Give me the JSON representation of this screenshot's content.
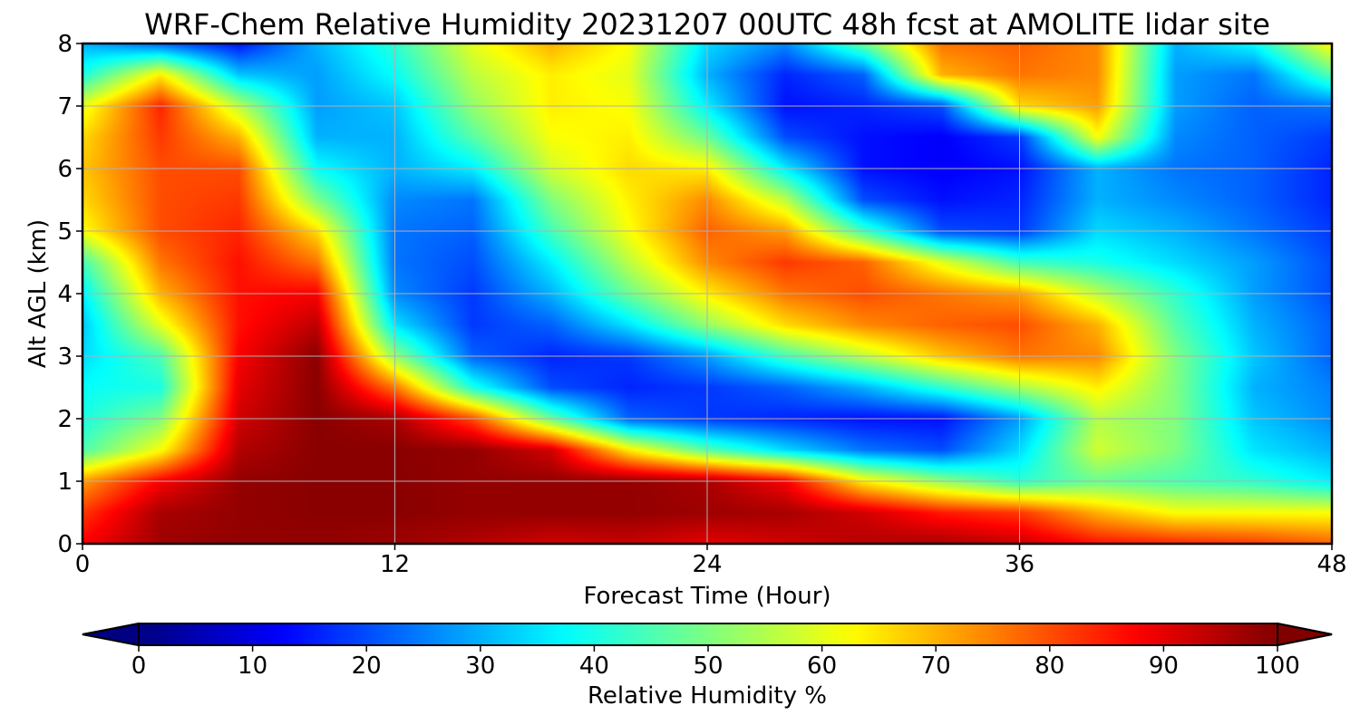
{
  "chart_data": {
    "type": "heatmap",
    "title": "WRF-Chem Relative Humidity 20231207 00UTC 48h fcst at AMOLITE lidar site",
    "xlabel": "Forecast Time (Hour)",
    "ylabel": "Alt AGL (km)",
    "xlim": [
      0,
      48
    ],
    "ylim": [
      0,
      8
    ],
    "xticks": [
      0,
      12,
      24,
      36,
      48
    ],
    "yticks": [
      0,
      1,
      2,
      3,
      4,
      5,
      6,
      7,
      8
    ],
    "grid": true,
    "colormap": "jet",
    "colorbar": {
      "label": "Relative Humidity %",
      "ticks": [
        0,
        10,
        20,
        30,
        40,
        50,
        60,
        70,
        80,
        90,
        100
      ],
      "range": [
        0,
        100
      ],
      "extend": "both",
      "orientation": "horizontal"
    },
    "x": [
      0,
      3,
      6,
      9,
      12,
      15,
      18,
      21,
      24,
      27,
      30,
      33,
      36,
      39,
      42,
      45,
      48
    ],
    "y": [
      0,
      0.5,
      1,
      1.5,
      2,
      2.5,
      3,
      3.5,
      4,
      4.5,
      5,
      5.5,
      6,
      6.5,
      7,
      7.5,
      8
    ],
    "values": [
      [
        88,
        97,
        98,
        98,
        97,
        95,
        92,
        93,
        90,
        92,
        95,
        96,
        93,
        86,
        84,
        82,
        78
      ],
      [
        82,
        96,
        98,
        99,
        99,
        98,
        98,
        98,
        97,
        96,
        92,
        85,
        82,
        70,
        62,
        62,
        62
      ],
      [
        72,
        88,
        98,
        99,
        99,
        98,
        98,
        98,
        96,
        88,
        64,
        52,
        42,
        48,
        45,
        42,
        36
      ],
      [
        45,
        62,
        95,
        99,
        99,
        98,
        92,
        64,
        46,
        34,
        24,
        20,
        34,
        58,
        50,
        35,
        30
      ],
      [
        40,
        50,
        92,
        99,
        96,
        80,
        48,
        22,
        18,
        16,
        14,
        14,
        28,
        55,
        50,
        32,
        26
      ],
      [
        38,
        40,
        90,
        99,
        76,
        40,
        20,
        16,
        18,
        22,
        30,
        42,
        54,
        64,
        50,
        30,
        25
      ],
      [
        34,
        45,
        88,
        99,
        52,
        22,
        16,
        18,
        28,
        44,
        56,
        68,
        76,
        74,
        50,
        32,
        22
      ],
      [
        32,
        60,
        86,
        94,
        35,
        18,
        22,
        35,
        52,
        66,
        74,
        78,
        80,
        70,
        46,
        30,
        22
      ],
      [
        36,
        70,
        86,
        88,
        26,
        18,
        30,
        48,
        64,
        76,
        80,
        76,
        72,
        56,
        42,
        28,
        20
      ],
      [
        44,
        76,
        86,
        76,
        24,
        20,
        36,
        56,
        74,
        82,
        78,
        60,
        44,
        40,
        34,
        28,
        20
      ],
      [
        62,
        80,
        84,
        66,
        24,
        22,
        44,
        62,
        78,
        72,
        44,
        20,
        18,
        34,
        30,
        24,
        18
      ],
      [
        66,
        80,
        82,
        50,
        26,
        24,
        50,
        64,
        74,
        56,
        20,
        14,
        16,
        30,
        26,
        22,
        16
      ],
      [
        68,
        80,
        80,
        38,
        30,
        36,
        58,
        66,
        64,
        36,
        14,
        12,
        14,
        30,
        24,
        22,
        16
      ],
      [
        66,
        82,
        70,
        30,
        30,
        46,
        62,
        64,
        48,
        20,
        14,
        12,
        18,
        62,
        26,
        22,
        18
      ],
      [
        60,
        84,
        56,
        28,
        32,
        52,
        64,
        62,
        36,
        14,
        16,
        20,
        66,
        72,
        28,
        22,
        24
      ],
      [
        40,
        64,
        32,
        28,
        38,
        56,
        64,
        60,
        30,
        16,
        22,
        70,
        76,
        74,
        28,
        24,
        46
      ],
      [
        30,
        22,
        14,
        30,
        42,
        60,
        70,
        62,
        34,
        26,
        48,
        76,
        78,
        74,
        30,
        38,
        64
      ]
    ]
  }
}
